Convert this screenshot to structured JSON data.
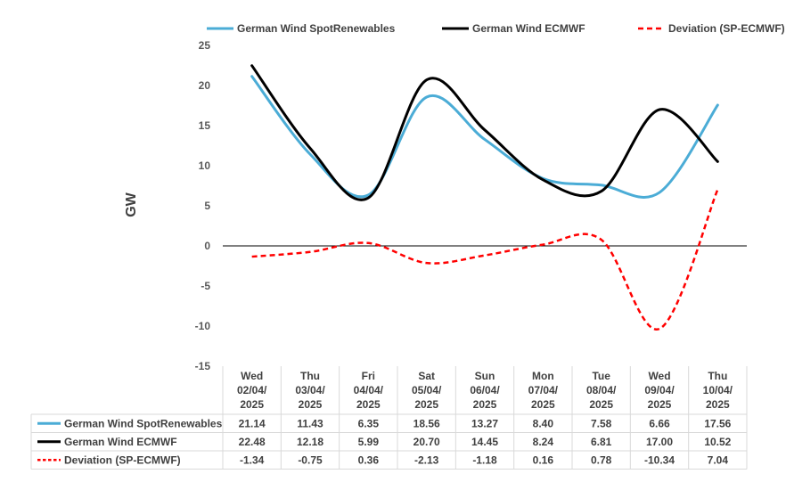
{
  "chart_data": {
    "type": "line",
    "ylabel": "GW",
    "ylim": [
      -15,
      25
    ],
    "yticks": [
      25,
      20,
      15,
      10,
      5,
      0,
      -5,
      -10,
      -15
    ],
    "categories": [
      [
        "Wed",
        "02/04/",
        "2025"
      ],
      [
        "Thu",
        "03/04/",
        "2025"
      ],
      [
        "Fri",
        "04/04/",
        "2025"
      ],
      [
        "Sat",
        "05/04/",
        "2025"
      ],
      [
        "Sun",
        "06/04/",
        "2025"
      ],
      [
        "Mon",
        "07/04/",
        "2025"
      ],
      [
        "Tue",
        "08/04/",
        "2025"
      ],
      [
        "Wed",
        "09/04/",
        "2025"
      ],
      [
        "Thu",
        "10/04/",
        "2025"
      ]
    ],
    "legend_position": "top",
    "series": [
      {
        "name": "German Wind SpotRenewables",
        "color": "#4bacd6",
        "dash": "solid",
        "values": [
          21.14,
          11.43,
          6.35,
          18.56,
          13.27,
          8.4,
          7.58,
          6.66,
          17.56
        ],
        "labels": [
          "21.14",
          "11.43",
          "6.35",
          "18.56",
          "13.27",
          "8.40",
          "7.58",
          "6.66",
          "17.56"
        ]
      },
      {
        "name": "German Wind ECMWF",
        "color": "#000000",
        "dash": "solid",
        "values": [
          22.48,
          12.18,
          5.99,
          20.7,
          14.45,
          8.24,
          6.81,
          17.0,
          10.52
        ],
        "labels": [
          "22.48",
          "12.18",
          "5.99",
          "20.70",
          "14.45",
          "8.24",
          "6.81",
          "17.00",
          "10.52"
        ]
      },
      {
        "name": "Deviation (SP-ECMWF)",
        "color": "#ff0000",
        "dash": "dashed",
        "values": [
          -1.34,
          -0.75,
          0.36,
          -2.13,
          -1.18,
          0.16,
          0.78,
          -10.34,
          7.04
        ],
        "labels": [
          "-1.34",
          "-0.75",
          "0.36",
          "-2.13",
          "-1.18",
          "0.16",
          "0.78",
          "-10.34",
          "7.04"
        ]
      }
    ]
  }
}
